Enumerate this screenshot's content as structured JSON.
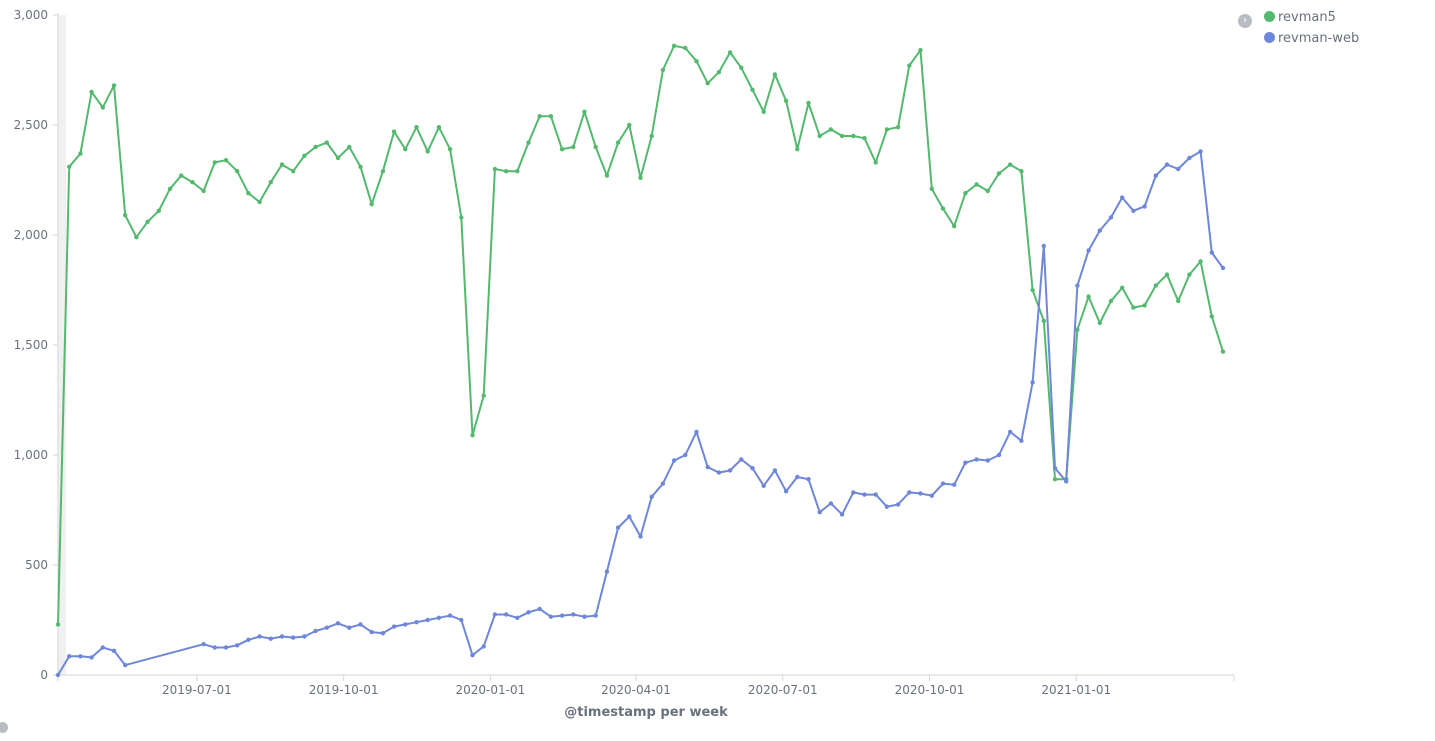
{
  "chart_data": {
    "type": "line",
    "xlabel": "@timestamp per week",
    "ylabel": "",
    "ylim": [
      0,
      3000
    ],
    "yticks": [
      "0",
      "500",
      "1,000",
      "1,500",
      "2,000",
      "2,500",
      "3,000"
    ],
    "xticks": [
      "2019-07-01",
      "2019-10-01",
      "2020-01-01",
      "2020-04-01",
      "2020-07-01",
      "2020-10-01",
      "2021-01-01"
    ],
    "legend_position": "top-right",
    "grid": false,
    "series": [
      {
        "name": "revman5",
        "color": "#54b86f",
        "values": [
          [
            0,
            230
          ],
          [
            1,
            2310
          ],
          [
            2,
            2370
          ],
          [
            3,
            2650
          ],
          [
            4,
            2580
          ],
          [
            5,
            2680
          ],
          [
            6,
            2090
          ],
          [
            7,
            1990
          ],
          [
            8,
            2060
          ],
          [
            9,
            2110
          ],
          [
            10,
            2210
          ],
          [
            11,
            2270
          ],
          [
            12,
            2240
          ],
          [
            13,
            2200
          ],
          [
            14,
            2330
          ],
          [
            15,
            2340
          ],
          [
            16,
            2290
          ],
          [
            17,
            2190
          ],
          [
            18,
            2150
          ],
          [
            19,
            2240
          ],
          [
            20,
            2320
          ],
          [
            21,
            2290
          ],
          [
            22,
            2360
          ],
          [
            23,
            2400
          ],
          [
            24,
            2420
          ],
          [
            25,
            2350
          ],
          [
            26,
            2400
          ],
          [
            27,
            2310
          ],
          [
            28,
            2140
          ],
          [
            29,
            2290
          ],
          [
            30,
            2470
          ],
          [
            31,
            2390
          ],
          [
            32,
            2490
          ],
          [
            33,
            2380
          ],
          [
            34,
            2490
          ],
          [
            35,
            2390
          ],
          [
            36,
            2080
          ],
          [
            37,
            1090
          ],
          [
            38,
            1270
          ],
          [
            39,
            2300
          ],
          [
            40,
            2290
          ],
          [
            41,
            2290
          ],
          [
            42,
            2420
          ],
          [
            43,
            2540
          ],
          [
            44,
            2540
          ],
          [
            45,
            2390
          ],
          [
            46,
            2400
          ],
          [
            47,
            2560
          ],
          [
            48,
            2400
          ],
          [
            49,
            2270
          ],
          [
            50,
            2420
          ],
          [
            51,
            2500
          ],
          [
            52,
            2260
          ],
          [
            53,
            2450
          ],
          [
            54,
            2750
          ],
          [
            55,
            2860
          ],
          [
            56,
            2850
          ],
          [
            57,
            2790
          ],
          [
            58,
            2690
          ],
          [
            59,
            2740
          ],
          [
            60,
            2830
          ],
          [
            61,
            2760
          ],
          [
            62,
            2660
          ],
          [
            63,
            2560
          ],
          [
            64,
            2730
          ],
          [
            65,
            2610
          ],
          [
            66,
            2390
          ],
          [
            67,
            2600
          ],
          [
            68,
            2450
          ],
          [
            69,
            2480
          ],
          [
            70,
            2450
          ],
          [
            71,
            2450
          ],
          [
            72,
            2440
          ],
          [
            73,
            2330
          ],
          [
            74,
            2480
          ],
          [
            75,
            2490
          ],
          [
            76,
            2770
          ],
          [
            77,
            2840
          ],
          [
            78,
            2210
          ],
          [
            79,
            2120
          ],
          [
            80,
            2040
          ],
          [
            81,
            2190
          ],
          [
            82,
            2230
          ],
          [
            83,
            2200
          ],
          [
            84,
            2280
          ],
          [
            85,
            2320
          ],
          [
            86,
            2290
          ],
          [
            87,
            1750
          ],
          [
            88,
            1610
          ],
          [
            89,
            890
          ],
          [
            90,
            890
          ],
          [
            91,
            1570
          ],
          [
            92,
            1720
          ],
          [
            93,
            1600
          ],
          [
            94,
            1700
          ],
          [
            95,
            1760
          ],
          [
            96,
            1670
          ],
          [
            97,
            1680
          ],
          [
            98,
            1770
          ],
          [
            99,
            1820
          ],
          [
            100,
            1700
          ],
          [
            101,
            1820
          ],
          [
            102,
            1880
          ],
          [
            103,
            1630
          ],
          [
            104,
            1470
          ]
        ]
      },
      {
        "name": "revman-web",
        "color": "#6f87d8",
        "values": [
          [
            0,
            0
          ],
          [
            1,
            85
          ],
          [
            2,
            85
          ],
          [
            3,
            80
          ],
          [
            4,
            125
          ],
          [
            5,
            110
          ],
          [
            6,
            45
          ],
          [
            13,
            140
          ],
          [
            14,
            125
          ],
          [
            15,
            125
          ],
          [
            16,
            135
          ],
          [
            17,
            160
          ],
          [
            18,
            175
          ],
          [
            19,
            165
          ],
          [
            20,
            175
          ],
          [
            21,
            170
          ],
          [
            22,
            175
          ],
          [
            23,
            200
          ],
          [
            24,
            215
          ],
          [
            25,
            235
          ],
          [
            26,
            215
          ],
          [
            27,
            230
          ],
          [
            28,
            195
          ],
          [
            29,
            190
          ],
          [
            30,
            220
          ],
          [
            31,
            230
          ],
          [
            32,
            240
          ],
          [
            33,
            250
          ],
          [
            34,
            260
          ],
          [
            35,
            270
          ],
          [
            36,
            250
          ],
          [
            37,
            90
          ],
          [
            38,
            130
          ],
          [
            39,
            275
          ],
          [
            40,
            275
          ],
          [
            41,
            260
          ],
          [
            42,
            285
          ],
          [
            43,
            300
          ],
          [
            44,
            265
          ],
          [
            45,
            270
          ],
          [
            46,
            275
          ],
          [
            47,
            265
          ],
          [
            48,
            270
          ],
          [
            49,
            470
          ],
          [
            50,
            670
          ],
          [
            51,
            720
          ],
          [
            52,
            630
          ],
          [
            53,
            810
          ],
          [
            54,
            870
          ],
          [
            55,
            975
          ],
          [
            56,
            1000
          ],
          [
            57,
            1105
          ],
          [
            58,
            945
          ],
          [
            59,
            920
          ],
          [
            60,
            930
          ],
          [
            61,
            980
          ],
          [
            62,
            940
          ],
          [
            63,
            860
          ],
          [
            64,
            930
          ],
          [
            65,
            835
          ],
          [
            66,
            900
          ],
          [
            67,
            890
          ],
          [
            68,
            740
          ],
          [
            69,
            780
          ],
          [
            70,
            730
          ],
          [
            71,
            830
          ],
          [
            72,
            820
          ],
          [
            73,
            820
          ],
          [
            74,
            765
          ],
          [
            75,
            775
          ],
          [
            76,
            830
          ],
          [
            77,
            825
          ],
          [
            78,
            815
          ],
          [
            79,
            870
          ],
          [
            80,
            865
          ],
          [
            81,
            965
          ],
          [
            82,
            980
          ],
          [
            83,
            975
          ],
          [
            84,
            1000
          ],
          [
            85,
            1105
          ],
          [
            86,
            1065
          ],
          [
            87,
            1330
          ],
          [
            88,
            1950
          ],
          [
            89,
            940
          ],
          [
            90,
            880
          ],
          [
            91,
            1770
          ],
          [
            92,
            1930
          ],
          [
            93,
            2020
          ],
          [
            94,
            2080
          ],
          [
            95,
            2170
          ],
          [
            96,
            2110
          ],
          [
            97,
            2130
          ],
          [
            98,
            2270
          ],
          [
            99,
            2320
          ],
          [
            100,
            2300
          ],
          [
            101,
            2350
          ],
          [
            102,
            2380
          ],
          [
            103,
            1920
          ],
          [
            104,
            1850
          ]
        ]
      }
    ]
  },
  "legend": {
    "toggle_icon": "chevron-right-icon",
    "items": [
      {
        "label": "revman5",
        "color": "#54b86f"
      },
      {
        "label": "revman-web",
        "color": "#6f87d8"
      }
    ]
  }
}
